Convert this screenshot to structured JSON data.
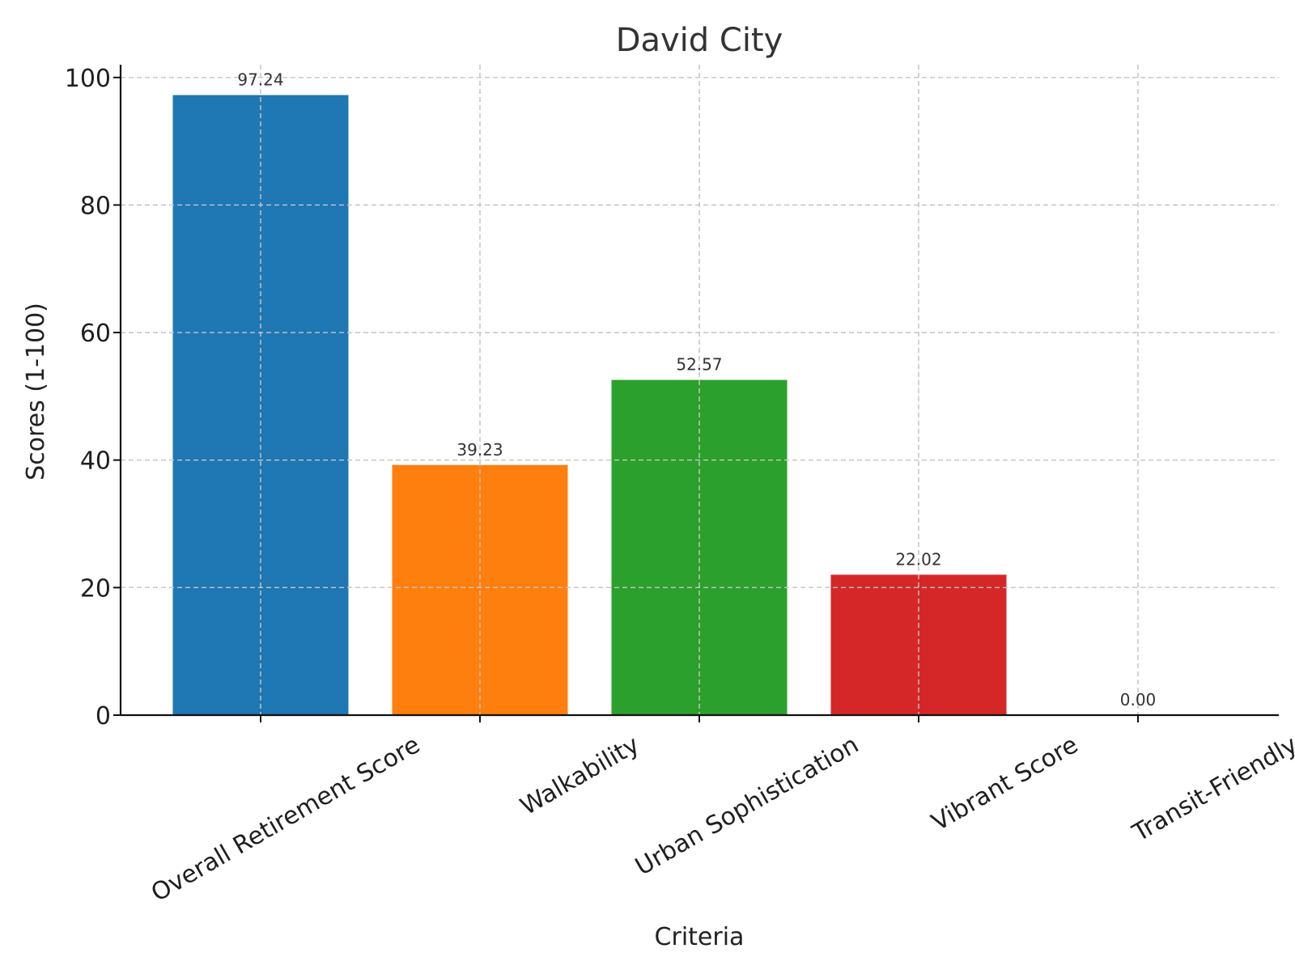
{
  "chart_data": {
    "type": "bar",
    "title": "David City",
    "xlabel": "Criteria",
    "ylabel": "Scores (1-100)",
    "categories": [
      "Overall Retirement Score",
      "Walkability",
      "Urban Sophistication",
      "Vibrant Score",
      "Transit-Friendly"
    ],
    "values": [
      97.24,
      39.23,
      52.57,
      22.02,
      0.0
    ],
    "value_labels": [
      "97.24",
      "39.23",
      "52.57",
      "22.02",
      "0.00"
    ],
    "colors": [
      "#1f77b4",
      "#ff7f0e",
      "#2ca02c",
      "#d62728",
      "#9467bd"
    ],
    "ylim": [
      0,
      102
    ],
    "yticks": [
      0,
      20,
      40,
      60,
      80,
      100
    ],
    "grid": true,
    "legend": "none"
  }
}
